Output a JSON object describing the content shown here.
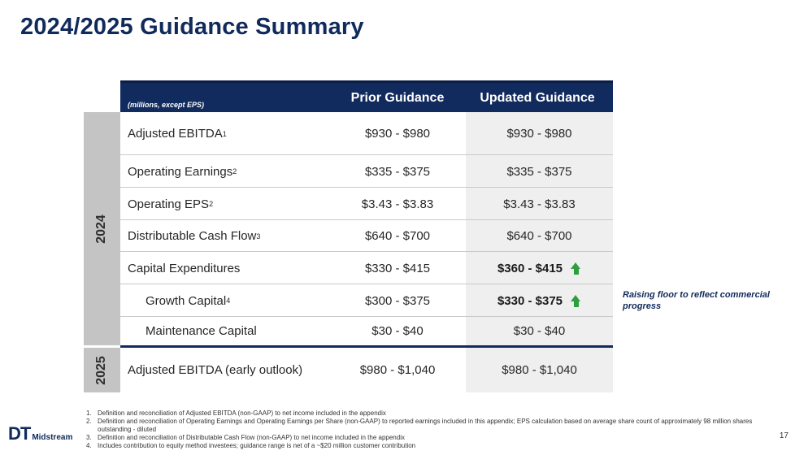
{
  "title": "2024/2025 Guidance Summary",
  "table": {
    "units_note": "(millions, except EPS)",
    "col_prior": "Prior Guidance",
    "col_updated": "Updated Guidance",
    "year_2024": "2024",
    "year_2025": "2025",
    "rows": [
      {
        "label": "Adjusted EBITDA",
        "sup": "1",
        "prior": "$930 - $980",
        "updated": "$930 - $980"
      },
      {
        "label": "Operating Earnings",
        "sup": "2",
        "prior": "$335 - $375",
        "updated": "$335 - $375"
      },
      {
        "label": "Operating EPS",
        "sup": "2",
        "prior": "$3.43 - $3.83",
        "updated": "$3.43 - $3.83"
      },
      {
        "label": "Distributable Cash Flow",
        "sup": "3",
        "prior": "$640 - $700",
        "updated": "$640 - $700"
      },
      {
        "label": "Capital Expenditures",
        "sup": "",
        "prior": "$330 - $415",
        "updated": "$360 - $415",
        "raised": true
      },
      {
        "label": "Growth Capital",
        "sup": "4",
        "prior": "$300 - $375",
        "updated": "$330 - $375",
        "raised": true
      },
      {
        "label": "Maintenance Capital",
        "sup": "",
        "prior": "$30 - $40",
        "updated": "$30 - $40"
      },
      {
        "label": "Adjusted EBITDA (early outlook)",
        "sup": "",
        "prior": "$980 - $1,040",
        "updated": "$980 - $1,040"
      }
    ]
  },
  "side_note": "Raising floor to reflect commercial progress",
  "footnotes": [
    {
      "n": "1.",
      "text": "Definition and reconciliation of Adjusted EBITDA (non-GAAP) to net income included in the appendix"
    },
    {
      "n": "2.",
      "text": "Definition and reconciliation of Operating Earnings and Operating Earnings per Share (non-GAAP) to reported earnings included in this appendix; EPS calculation based on average share count of approximately 98 million shares outstanding - diluted"
    },
    {
      "n": "3.",
      "text": "Definition and reconciliation of Distributable Cash Flow (non-GAAP) to net income included in the appendix"
    },
    {
      "n": "4.",
      "text": "Includes contribution to equity method investees; guidance range is net of a ~$20 million customer contribution"
    }
  ],
  "logo": {
    "mark": "DT",
    "name": "Midstream"
  },
  "page_number": "17",
  "colors": {
    "navy": "#122b5e",
    "up_arrow": "#2f9e3e",
    "year_band": "#c4c4c4",
    "updated_col": "#efefef"
  }
}
